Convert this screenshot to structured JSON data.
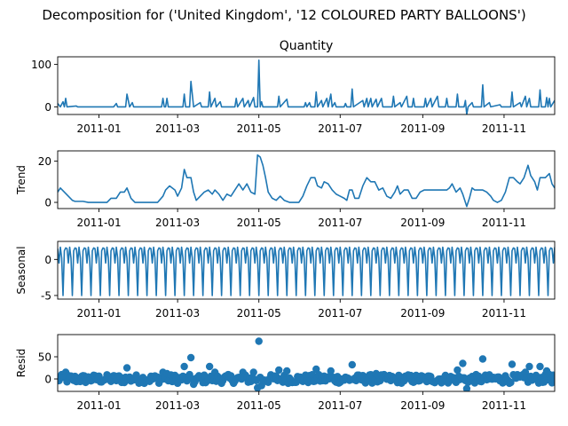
{
  "figure": {
    "suptitle": "Decomposition for ('United Kingdom', '12 COLOURED PARTY BALLOONS')"
  },
  "chart_data": [
    {
      "type": "line",
      "key": "observed",
      "title": "Quantity",
      "ylabel": "",
      "xlim": [
        "2010-12-01",
        "2011-12-09"
      ],
      "ylim": [
        -18,
        118
      ],
      "yticks": [
        0,
        100
      ],
      "xticks": [
        "2011-01",
        "2011-03",
        "2011-05",
        "2011-07",
        "2011-09",
        "2011-11"
      ],
      "color": "#1f77b4",
      "points": [
        [
          "2010-12-01",
          8
        ],
        [
          "2010-12-03",
          0
        ],
        [
          "2010-12-05",
          12
        ],
        [
          "2010-12-06",
          0
        ],
        [
          "2010-12-07",
          20
        ],
        [
          "2010-12-08",
          0
        ],
        [
          "2010-12-15",
          2
        ],
        [
          "2010-12-16",
          0
        ],
        [
          "2011-01-12",
          0
        ],
        [
          "2011-01-14",
          8
        ],
        [
          "2011-01-15",
          0
        ],
        [
          "2011-01-21",
          0
        ],
        [
          "2011-01-22",
          30
        ],
        [
          "2011-01-24",
          0
        ],
        [
          "2011-01-26",
          10
        ],
        [
          "2011-01-27",
          0
        ],
        [
          "2011-02-17",
          0
        ],
        [
          "2011-02-18",
          20
        ],
        [
          "2011-02-19",
          0
        ],
        [
          "2011-02-20",
          0
        ],
        [
          "2011-02-21",
          20
        ],
        [
          "2011-02-22",
          0
        ],
        [
          "2011-03-05",
          0
        ],
        [
          "2011-03-06",
          30
        ],
        [
          "2011-03-07",
          0
        ],
        [
          "2011-03-10",
          0
        ],
        [
          "2011-03-11",
          60
        ],
        [
          "2011-03-13",
          0
        ],
        [
          "2011-03-18",
          10
        ],
        [
          "2011-03-19",
          0
        ],
        [
          "2011-03-24",
          0
        ],
        [
          "2011-03-25",
          35
        ],
        [
          "2011-03-26",
          0
        ],
        [
          "2011-03-29",
          20
        ],
        [
          "2011-03-30",
          0
        ],
        [
          "2011-04-02",
          12
        ],
        [
          "2011-04-03",
          0
        ],
        [
          "2011-04-13",
          0
        ],
        [
          "2011-04-14",
          20
        ],
        [
          "2011-04-15",
          0
        ],
        [
          "2011-04-19",
          20
        ],
        [
          "2011-04-20",
          0
        ],
        [
          "2011-04-23",
          15
        ],
        [
          "2011-04-24",
          0
        ],
        [
          "2011-04-27",
          22
        ],
        [
          "2011-04-28",
          0
        ],
        [
          "2011-04-30",
          0
        ],
        [
          "2011-05-01",
          110
        ],
        [
          "2011-05-02",
          0
        ],
        [
          "2011-05-03",
          12
        ],
        [
          "2011-05-04",
          0
        ],
        [
          "2011-05-15",
          0
        ],
        [
          "2011-05-16",
          25
        ],
        [
          "2011-05-17",
          0
        ],
        [
          "2011-05-22",
          18
        ],
        [
          "2011-05-23",
          0
        ],
        [
          "2011-06-04",
          0
        ],
        [
          "2011-06-05",
          10
        ],
        [
          "2011-06-06",
          0
        ],
        [
          "2011-06-08",
          10
        ],
        [
          "2011-06-09",
          0
        ],
        [
          "2011-06-12",
          0
        ],
        [
          "2011-06-13",
          35
        ],
        [
          "2011-06-14",
          0
        ],
        [
          "2011-06-17",
          15
        ],
        [
          "2011-06-18",
          0
        ],
        [
          "2011-06-21",
          20
        ],
        [
          "2011-06-22",
          0
        ],
        [
          "2011-06-24",
          30
        ],
        [
          "2011-06-25",
          0
        ],
        [
          "2011-06-27",
          10
        ],
        [
          "2011-06-28",
          0
        ],
        [
          "2011-07-04",
          0
        ],
        [
          "2011-07-05",
          8
        ],
        [
          "2011-07-06",
          0
        ],
        [
          "2011-07-09",
          0
        ],
        [
          "2011-07-10",
          42
        ],
        [
          "2011-07-11",
          0
        ],
        [
          "2011-07-18",
          15
        ],
        [
          "2011-07-19",
          0
        ],
        [
          "2011-07-21",
          20
        ],
        [
          "2011-07-22",
          0
        ],
        [
          "2011-07-24",
          20
        ],
        [
          "2011-07-25",
          0
        ],
        [
          "2011-07-28",
          18
        ],
        [
          "2011-07-29",
          0
        ],
        [
          "2011-08-01",
          20
        ],
        [
          "2011-08-02",
          0
        ],
        [
          "2011-08-09",
          0
        ],
        [
          "2011-08-10",
          25
        ],
        [
          "2011-08-11",
          0
        ],
        [
          "2011-08-15",
          10
        ],
        [
          "2011-08-16",
          0
        ],
        [
          "2011-08-20",
          25
        ],
        [
          "2011-08-21",
          0
        ],
        [
          "2011-08-24",
          0
        ],
        [
          "2011-08-25",
          20
        ],
        [
          "2011-08-26",
          0
        ],
        [
          "2011-09-02",
          0
        ],
        [
          "2011-09-03",
          20
        ],
        [
          "2011-09-04",
          0
        ],
        [
          "2011-09-07",
          20
        ],
        [
          "2011-09-08",
          0
        ],
        [
          "2011-09-12",
          25
        ],
        [
          "2011-09-13",
          0
        ],
        [
          "2011-09-18",
          0
        ],
        [
          "2011-09-19",
          20
        ],
        [
          "2011-09-20",
          0
        ],
        [
          "2011-09-26",
          0
        ],
        [
          "2011-09-27",
          30
        ],
        [
          "2011-09-28",
          0
        ],
        [
          "2011-10-02",
          0
        ],
        [
          "2011-10-03",
          15
        ],
        [
          "2011-10-04",
          -18
        ],
        [
          "2011-10-05",
          0
        ],
        [
          "2011-10-08",
          10
        ],
        [
          "2011-10-09",
          0
        ],
        [
          "2011-10-15",
          0
        ],
        [
          "2011-10-16",
          52
        ],
        [
          "2011-10-17",
          0
        ],
        [
          "2011-10-21",
          10
        ],
        [
          "2011-10-22",
          0
        ],
        [
          "2011-10-29",
          5
        ],
        [
          "2011-10-30",
          0
        ],
        [
          "2011-11-06",
          0
        ],
        [
          "2011-11-07",
          35
        ],
        [
          "2011-11-08",
          0
        ],
        [
          "2011-11-13",
          10
        ],
        [
          "2011-11-14",
          0
        ],
        [
          "2011-11-17",
          25
        ],
        [
          "2011-11-18",
          0
        ],
        [
          "2011-11-20",
          20
        ],
        [
          "2011-11-21",
          0
        ],
        [
          "2011-11-27",
          0
        ],
        [
          "2011-11-28",
          40
        ],
        [
          "2011-11-29",
          0
        ],
        [
          "2011-12-02",
          0
        ],
        [
          "2011-12-03",
          22
        ],
        [
          "2011-12-04",
          0
        ],
        [
          "2011-12-05",
          20
        ],
        [
          "2011-12-06",
          0
        ],
        [
          "2011-12-09",
          15
        ]
      ]
    },
    {
      "type": "line",
      "key": "trend",
      "title": "",
      "ylabel": "Trend",
      "xlim": [
        "2010-12-01",
        "2011-12-09"
      ],
      "ylim": [
        -3,
        25
      ],
      "yticks": [
        0,
        20
      ],
      "xticks": [
        "2011-01",
        "2011-03",
        "2011-05",
        "2011-07",
        "2011-09",
        "2011-11"
      ],
      "color": "#1f77b4",
      "points": [
        [
          "2010-12-01",
          5
        ],
        [
          "2010-12-03",
          7
        ],
        [
          "2010-12-06",
          5
        ],
        [
          "2010-12-09",
          3
        ],
        [
          "2010-12-12",
          1
        ],
        [
          "2010-12-14",
          0.5
        ],
        [
          "2010-12-20",
          0.5
        ],
        [
          "2010-12-24",
          0
        ],
        [
          "2011-01-07",
          0
        ],
        [
          "2011-01-10",
          2
        ],
        [
          "2011-01-14",
          2
        ],
        [
          "2011-01-17",
          5
        ],
        [
          "2011-01-20",
          5
        ],
        [
          "2011-01-22",
          7
        ],
        [
          "2011-01-25",
          2
        ],
        [
          "2011-01-28",
          0
        ],
        [
          "2011-02-14",
          0
        ],
        [
          "2011-02-18",
          3
        ],
        [
          "2011-02-20",
          6
        ],
        [
          "2011-02-23",
          8
        ],
        [
          "2011-02-27",
          6
        ],
        [
          "2011-03-01",
          3
        ],
        [
          "2011-03-04",
          7
        ],
        [
          "2011-03-06",
          16
        ],
        [
          "2011-03-08",
          12
        ],
        [
          "2011-03-11",
          12
        ],
        [
          "2011-03-13",
          5
        ],
        [
          "2011-03-15",
          1
        ],
        [
          "2011-03-18",
          3
        ],
        [
          "2011-03-21",
          5
        ],
        [
          "2011-03-24",
          6
        ],
        [
          "2011-03-27",
          4
        ],
        [
          "2011-03-29",
          6
        ],
        [
          "2011-04-01",
          4
        ],
        [
          "2011-04-04",
          1
        ],
        [
          "2011-04-07",
          4
        ],
        [
          "2011-04-10",
          3
        ],
        [
          "2011-04-13",
          6
        ],
        [
          "2011-04-16",
          9
        ],
        [
          "2011-04-19",
          6
        ],
        [
          "2011-04-22",
          9
        ],
        [
          "2011-04-25",
          5
        ],
        [
          "2011-04-28",
          4
        ],
        [
          "2011-04-30",
          23
        ],
        [
          "2011-05-02",
          22
        ],
        [
          "2011-05-04",
          18
        ],
        [
          "2011-05-06",
          12
        ],
        [
          "2011-05-08",
          5
        ],
        [
          "2011-05-11",
          2
        ],
        [
          "2011-05-14",
          1
        ],
        [
          "2011-05-17",
          3
        ],
        [
          "2011-05-20",
          1
        ],
        [
          "2011-05-24",
          0
        ],
        [
          "2011-05-31",
          0
        ],
        [
          "2011-06-03",
          3
        ],
        [
          "2011-06-06",
          8
        ],
        [
          "2011-06-09",
          12
        ],
        [
          "2011-06-12",
          12
        ],
        [
          "2011-06-14",
          8
        ],
        [
          "2011-06-17",
          7
        ],
        [
          "2011-06-19",
          10
        ],
        [
          "2011-06-22",
          9
        ],
        [
          "2011-06-25",
          6
        ],
        [
          "2011-06-28",
          4
        ],
        [
          "2011-07-01",
          3
        ],
        [
          "2011-07-04",
          2
        ],
        [
          "2011-07-06",
          1
        ],
        [
          "2011-07-08",
          6
        ],
        [
          "2011-07-10",
          6
        ],
        [
          "2011-07-12",
          2
        ],
        [
          "2011-07-15",
          2
        ],
        [
          "2011-07-18",
          8
        ],
        [
          "2011-07-21",
          12
        ],
        [
          "2011-07-24",
          10
        ],
        [
          "2011-07-27",
          10
        ],
        [
          "2011-07-30",
          6
        ],
        [
          "2011-08-02",
          7
        ],
        [
          "2011-08-05",
          3
        ],
        [
          "2011-08-08",
          2
        ],
        [
          "2011-08-11",
          5
        ],
        [
          "2011-08-13",
          8
        ],
        [
          "2011-08-15",
          4
        ],
        [
          "2011-08-18",
          6
        ],
        [
          "2011-08-21",
          6
        ],
        [
          "2011-08-24",
          2
        ],
        [
          "2011-08-27",
          2
        ],
        [
          "2011-08-30",
          5
        ],
        [
          "2011-09-02",
          6
        ],
        [
          "2011-09-15",
          6
        ],
        [
          "2011-09-19",
          6
        ],
        [
          "2011-09-21",
          7
        ],
        [
          "2011-09-23",
          9
        ],
        [
          "2011-09-26",
          5
        ],
        [
          "2011-09-29",
          7
        ],
        [
          "2011-10-01",
          4
        ],
        [
          "2011-10-04",
          -2
        ],
        [
          "2011-10-06",
          2
        ],
        [
          "2011-10-08",
          7
        ],
        [
          "2011-10-10",
          6
        ],
        [
          "2011-10-13",
          6
        ],
        [
          "2011-10-16",
          6
        ],
        [
          "2011-10-19",
          5
        ],
        [
          "2011-10-22",
          3
        ],
        [
          "2011-10-24",
          1
        ],
        [
          "2011-10-27",
          0
        ],
        [
          "2011-10-30",
          1
        ],
        [
          "2011-11-02",
          5
        ],
        [
          "2011-11-05",
          12
        ],
        [
          "2011-11-08",
          12
        ],
        [
          "2011-11-11",
          10
        ],
        [
          "2011-11-13",
          9
        ],
        [
          "2011-11-16",
          12
        ],
        [
          "2011-11-19",
          18
        ],
        [
          "2011-11-21",
          13
        ],
        [
          "2011-11-24",
          10
        ],
        [
          "2011-11-26",
          6
        ],
        [
          "2011-11-28",
          12
        ],
        [
          "2011-12-02",
          12
        ],
        [
          "2011-12-05",
          14
        ],
        [
          "2011-12-07",
          9
        ],
        [
          "2011-12-09",
          7
        ]
      ]
    },
    {
      "type": "line",
      "key": "seasonal",
      "title": "",
      "ylabel": "Seasonal",
      "xlim": [
        "2010-12-01",
        "2011-12-09"
      ],
      "ylim": [
        -5.5,
        2.5
      ],
      "yticks": [
        -5,
        0
      ],
      "xticks": [
        "2011-01",
        "2011-03",
        "2011-05",
        "2011-07",
        "2011-09",
        "2011-11"
      ],
      "color": "#1f77b4",
      "period_days": 7,
      "start": "2010-12-01",
      "end": "2011-12-09",
      "cycle": [
        1.5,
        -0.5,
        1.7,
        0.2,
        -5.0,
        1.2,
        1.6
      ]
    },
    {
      "type": "scatter",
      "key": "resid",
      "title": "",
      "ylabel": "Resid",
      "xlim": [
        "2010-12-01",
        "2011-12-09"
      ],
      "ylim": [
        -28,
        100
      ],
      "yticks": [
        0,
        50
      ],
      "xticks": [
        "2011-01",
        "2011-03",
        "2011-05",
        "2011-07",
        "2011-09",
        "2011-11"
      ],
      "color": "#1f77b4",
      "start": "2010-12-01",
      "end": "2011-12-09",
      "base": [
        -10,
        10
      ],
      "outliers": [
        [
          "2010-12-07",
          15
        ],
        [
          "2011-01-22",
          25
        ],
        [
          "2011-02-18",
          15
        ],
        [
          "2011-02-21",
          12
        ],
        [
          "2011-03-06",
          28
        ],
        [
          "2011-03-11",
          48
        ],
        [
          "2011-03-13",
          -12
        ],
        [
          "2011-03-25",
          28
        ],
        [
          "2011-03-29",
          15
        ],
        [
          "2011-04-19",
          15
        ],
        [
          "2011-04-27",
          15
        ],
        [
          "2011-04-30",
          -20
        ],
        [
          "2011-05-01",
          85
        ],
        [
          "2011-05-03",
          -15
        ],
        [
          "2011-05-16",
          20
        ],
        [
          "2011-05-22",
          18
        ],
        [
          "2011-06-13",
          22
        ],
        [
          "2011-06-24",
          18
        ],
        [
          "2011-07-10",
          32
        ],
        [
          "2011-07-28",
          12
        ],
        [
          "2011-09-27",
          20
        ],
        [
          "2011-10-01",
          35
        ],
        [
          "2011-10-04",
          -22
        ],
        [
          "2011-10-16",
          45
        ],
        [
          "2011-11-07",
          33
        ],
        [
          "2011-11-17",
          15
        ],
        [
          "2011-11-20",
          28
        ],
        [
          "2011-11-28",
          28
        ],
        [
          "2011-12-03",
          18
        ],
        [
          "2011-12-05",
          10
        ]
      ]
    }
  ]
}
